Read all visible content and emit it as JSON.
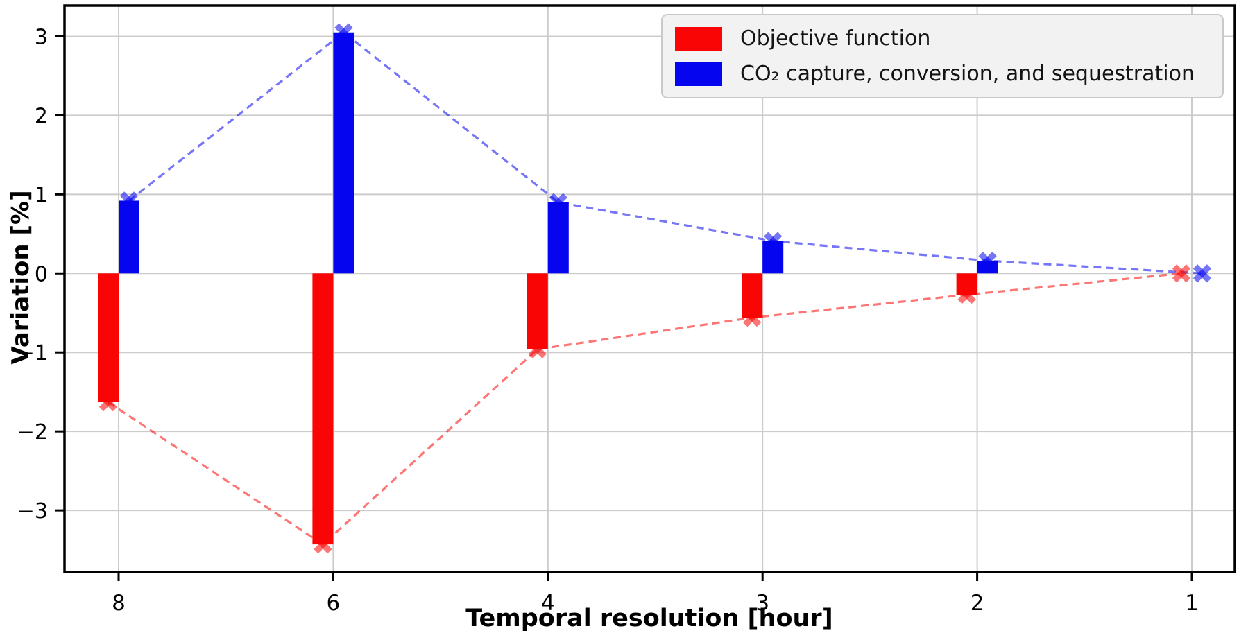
{
  "chart_data": {
    "type": "bar",
    "title": "",
    "xlabel": "Temporal resolution [hour]",
    "ylabel": "Variation [%]",
    "categories": [
      "8",
      "6",
      "4",
      "3",
      "2",
      "1"
    ],
    "series": [
      {
        "name": "Objective function",
        "color": "#fa0505",
        "marker_line_color": "#fa0505",
        "values": [
          -1.63,
          -3.43,
          -0.96,
          -0.56,
          -0.27,
          0.0
        ]
      },
      {
        "name": "CO₂ capture, conversion, and sequestration",
        "color": "#0505f0",
        "marker_line_color": "#0505f0",
        "values": [
          0.92,
          3.05,
          0.9,
          0.41,
          0.16,
          0.0
        ]
      }
    ],
    "yticks": [
      3,
      2,
      1,
      0,
      -1,
      -2,
      -3
    ],
    "ylim": [
      -3.78,
      3.39
    ],
    "grid": true,
    "grid_color": "#cccccc",
    "legend_position": "upper right",
    "style_notes": "dashed trend line through bar tips with X markers, 55% opacity"
  }
}
